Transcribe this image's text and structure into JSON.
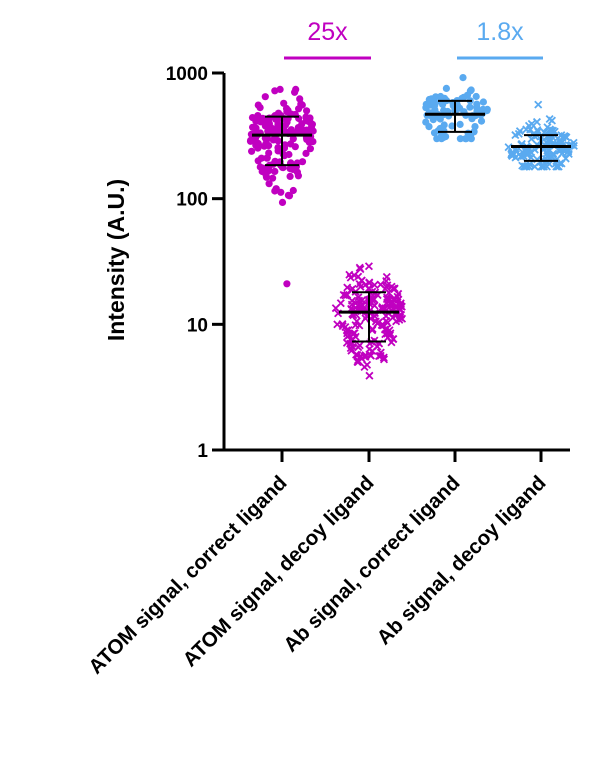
{
  "chart_data": {
    "type": "scatter",
    "subtype": "dot-plot with mean and SD error bars",
    "ylabel": "Intensity (A.U.)",
    "yscale": "log",
    "ylim": [
      1,
      1000
    ],
    "yticks": [
      {
        "value": 1,
        "label": "1"
      },
      {
        "value": 10,
        "label": "10"
      },
      {
        "value": 100,
        "label": "100"
      },
      {
        "value": 1000,
        "label": "1000"
      }
    ],
    "grid": false,
    "categories": [
      "ATOM signal, correct ligand",
      "ATOM signal, decoy ligand",
      "Ab signal, correct ligand",
      "Ab signal, decoy ligand"
    ],
    "series": [
      {
        "category": "ATOM signal, correct ligand",
        "marker": "circle",
        "color": "#c000c0",
        "mean": 320,
        "sd_low": 185,
        "sd_high": 450,
        "min": 21,
        "max": 740,
        "n": 170,
        "spread": 0.45
      },
      {
        "category": "ATOM signal, decoy ligand",
        "marker": "cross",
        "color": "#c000c0",
        "mean": 12.5,
        "sd_low": 7.3,
        "sd_high": 18,
        "min": 3.9,
        "max": 29,
        "n": 190,
        "spread": 0.45
      },
      {
        "category": "Ab signal, correct ligand",
        "marker": "circle",
        "color": "#5aaaf0",
        "mean": 470,
        "sd_low": 340,
        "sd_high": 600,
        "min": 300,
        "max": 920,
        "n": 90,
        "spread": 0.4
      },
      {
        "category": "Ab signal, decoy ligand",
        "marker": "cross",
        "color": "#5aaaf0",
        "mean": 260,
        "sd_low": 200,
        "sd_high": 320,
        "min": 180,
        "max": 560,
        "n": 130,
        "spread": 0.4
      }
    ],
    "annotations": [
      {
        "text": "25x",
        "from_category": 0,
        "to_category": 1,
        "color": "#c000c0"
      },
      {
        "text": "1.8x",
        "from_category": 2,
        "to_category": 3,
        "color": "#5aaaf0"
      }
    ]
  }
}
